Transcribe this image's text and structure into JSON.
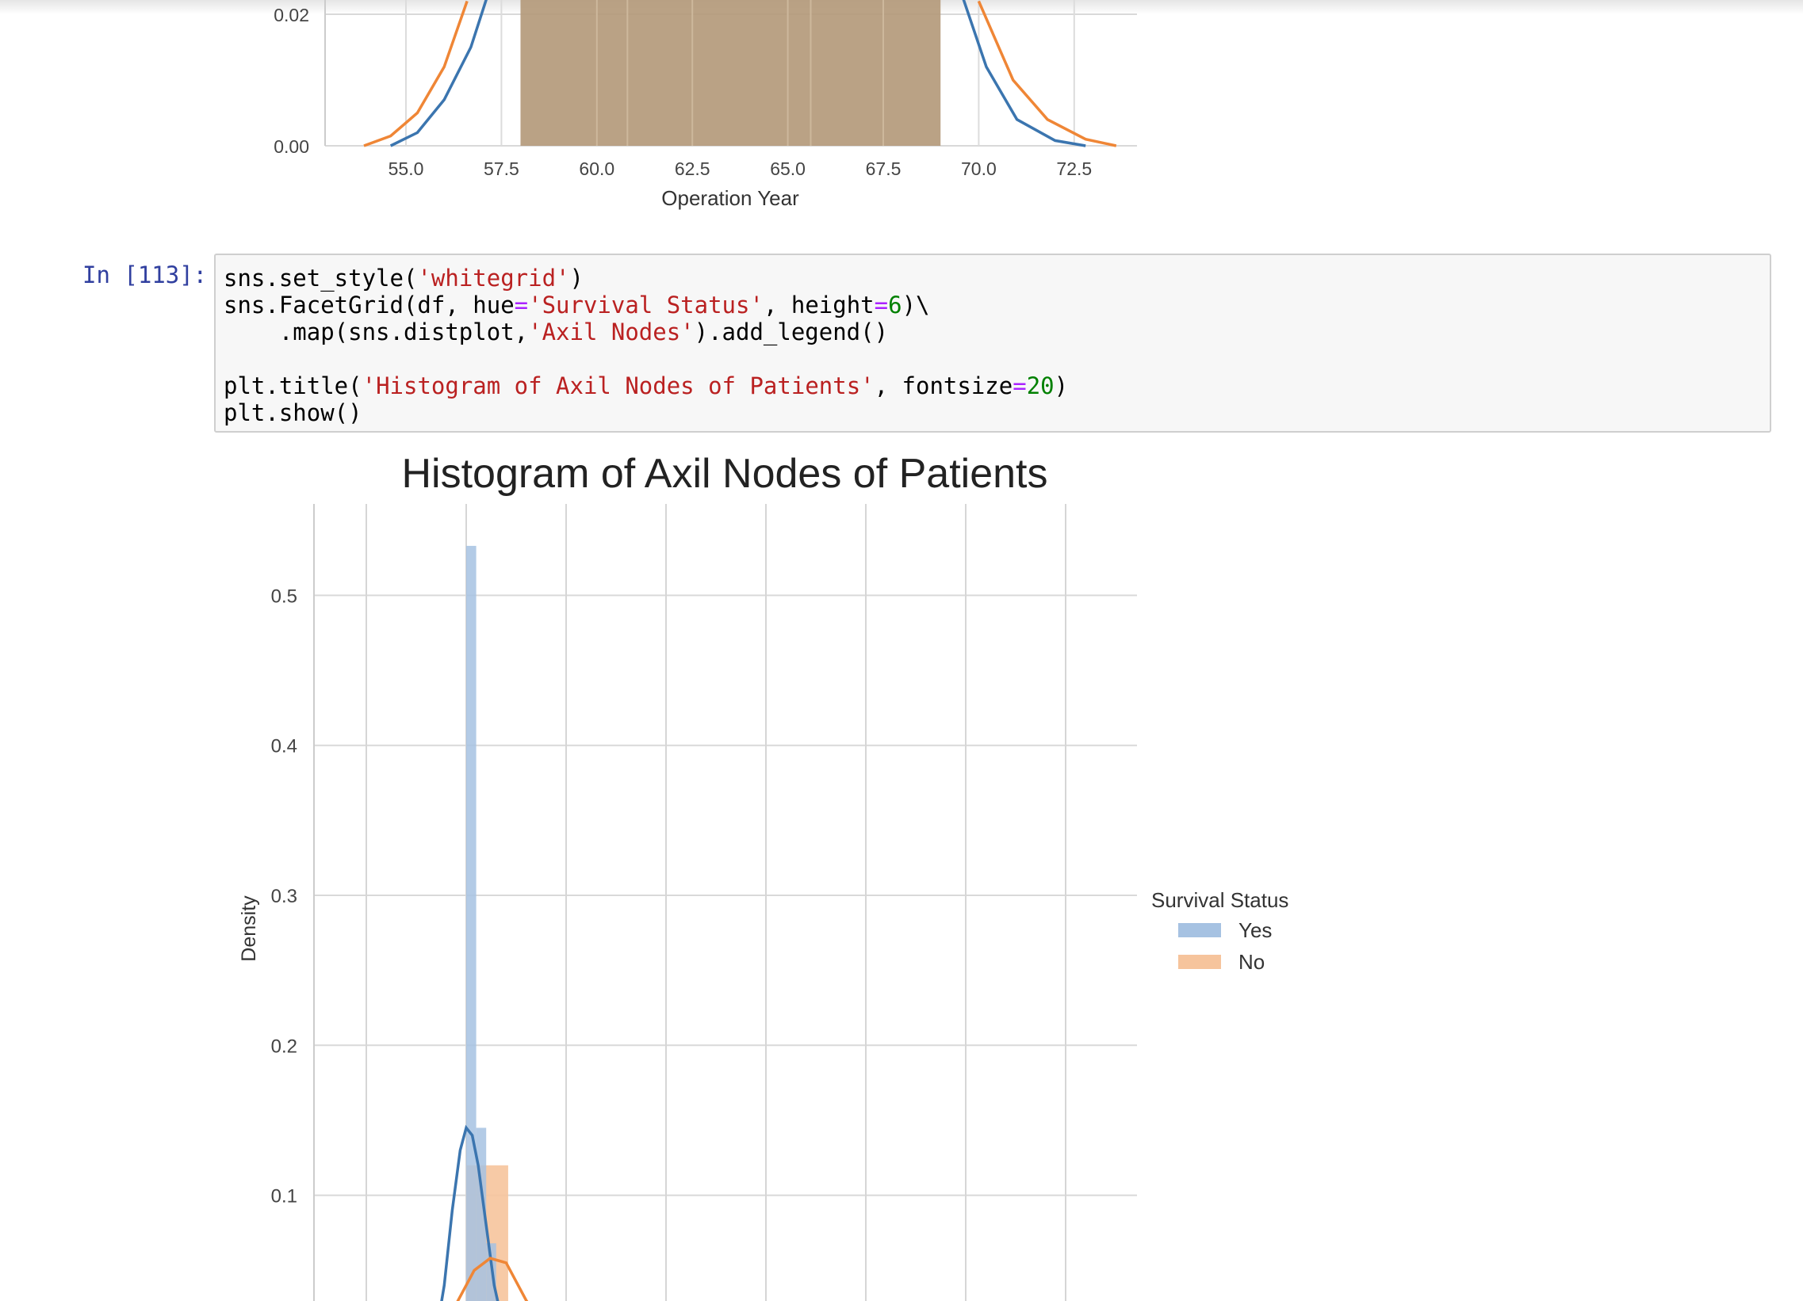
{
  "top_plot": {
    "chart_data": {
      "type": "area",
      "xlabel": "Operation Year",
      "ylabel": "",
      "y_ticks": [
        "0.00",
        "0.02"
      ],
      "x_ticks": [
        "55.0",
        "57.5",
        "60.0",
        "62.5",
        "65.0",
        "67.5",
        "70.0",
        "72.5"
      ],
      "xlim": [
        52.5,
        74.0
      ],
      "ylim": [
        0.0,
        0.02
      ],
      "histogram": {
        "x_start": 58.0,
        "x_end": 69.0,
        "bin_edges": [
          58,
          60,
          60.8,
          62.5,
          65,
          65.6,
          67.5,
          69
        ]
      },
      "series": [
        {
          "name": "Yes",
          "color": "#3b75af",
          "x": [
            54.6,
            55.3,
            56.0,
            56.7,
            57.2
          ],
          "y": [
            0.0,
            0.002,
            0.007,
            0.015,
            0.024
          ]
        },
        {
          "name": "No",
          "color": "#ef8636",
          "x": [
            53.9,
            54.6,
            55.3,
            56.0,
            56.6
          ],
          "y": [
            0.0,
            0.0015,
            0.005,
            0.012,
            0.022
          ]
        },
        {
          "name": "Yes",
          "color": "#3b75af",
          "x": [
            69.5,
            70.2,
            71.0,
            72.0,
            72.8
          ],
          "y": [
            0.024,
            0.012,
            0.004,
            0.0008,
            0.0
          ]
        },
        {
          "name": "No",
          "color": "#ef8636",
          "x": [
            70.0,
            70.9,
            71.8,
            72.8,
            73.6
          ],
          "y": [
            0.022,
            0.01,
            0.004,
            0.001,
            0.0
          ]
        }
      ]
    }
  },
  "cell": {
    "prompt": "In [113]:",
    "code": [
      [
        {
          "t": "sns.set_style(",
          "c": ""
        },
        {
          "t": "'whitegrid'",
          "c": "s"
        },
        {
          "t": ")",
          "c": ""
        }
      ],
      [
        {
          "t": "sns.FacetGrid(df, hue",
          "c": ""
        },
        {
          "t": "=",
          "c": "o"
        },
        {
          "t": "'Survival Status'",
          "c": "s"
        },
        {
          "t": ", height",
          "c": ""
        },
        {
          "t": "=",
          "c": "o"
        },
        {
          "t": "6",
          "c": "n"
        },
        {
          "t": ")\\",
          "c": ""
        }
      ],
      [
        {
          "t": "    .map(sns.distplot,",
          "c": ""
        },
        {
          "t": "'Axil Nodes'",
          "c": "s"
        },
        {
          "t": ").add_legend()",
          "c": ""
        }
      ],
      [
        {
          "t": "",
          "c": ""
        }
      ],
      [
        {
          "t": "plt.title(",
          "c": ""
        },
        {
          "t": "'Histogram of Axil Nodes of Patients'",
          "c": "s"
        },
        {
          "t": ", fontsize",
          "c": ""
        },
        {
          "t": "=",
          "c": "o"
        },
        {
          "t": "20",
          "c": "n"
        },
        {
          "t": ")",
          "c": ""
        }
      ],
      [
        {
          "t": "plt.show()",
          "c": ""
        }
      ]
    ]
  },
  "main_plot": {
    "chart_data": {
      "type": "bar",
      "title": "Histogram of Axil Nodes of Patients",
      "ylabel": "Density",
      "xlabel": "",
      "y_ticks": [
        "0.1",
        "0.2",
        "0.3",
        "0.4",
        "0.5"
      ],
      "ylim": [
        0.0,
        0.6
      ],
      "xlim": [
        -3,
        52
      ],
      "vgrid_x": [
        0,
        5,
        10,
        15,
        20,
        25,
        30,
        35
      ],
      "legend": {
        "title": "Survival Status",
        "placement": "right"
      },
      "series": [
        {
          "name": "Yes",
          "color": "#a6c2e2",
          "bins": [
            {
              "x0": 5.0,
              "x1": 5.5,
              "value": 0.533
            },
            {
              "x0": 5.5,
              "x1": 6.0,
              "value": 0.145
            },
            {
              "x0": 6.0,
              "x1": 6.5,
              "value": 0.068
            }
          ]
        },
        {
          "name": "No",
          "color": "#f6c49c",
          "bins": [
            {
              "x0": 5.0,
              "x1": 7.1,
              "value": 0.12
            }
          ]
        }
      ],
      "kde": [
        {
          "name": "Yes",
          "color": "#3b75af",
          "x": [
            3.4,
            3.9,
            4.3,
            4.7,
            5.0,
            5.3,
            5.6,
            6.0,
            6.4,
            6.9,
            7.4
          ],
          "y": [
            0.0,
            0.04,
            0.09,
            0.13,
            0.145,
            0.14,
            0.12,
            0.08,
            0.04,
            0.01,
            0.0
          ]
        },
        {
          "name": "No",
          "color": "#ef8636",
          "x": [
            3.0,
            3.8,
            4.6,
            5.4,
            6.2,
            7.0,
            8.0,
            9.0,
            9.8
          ],
          "y": [
            0.0,
            0.01,
            0.03,
            0.05,
            0.058,
            0.055,
            0.03,
            0.01,
            0.0
          ]
        }
      ]
    }
  }
}
